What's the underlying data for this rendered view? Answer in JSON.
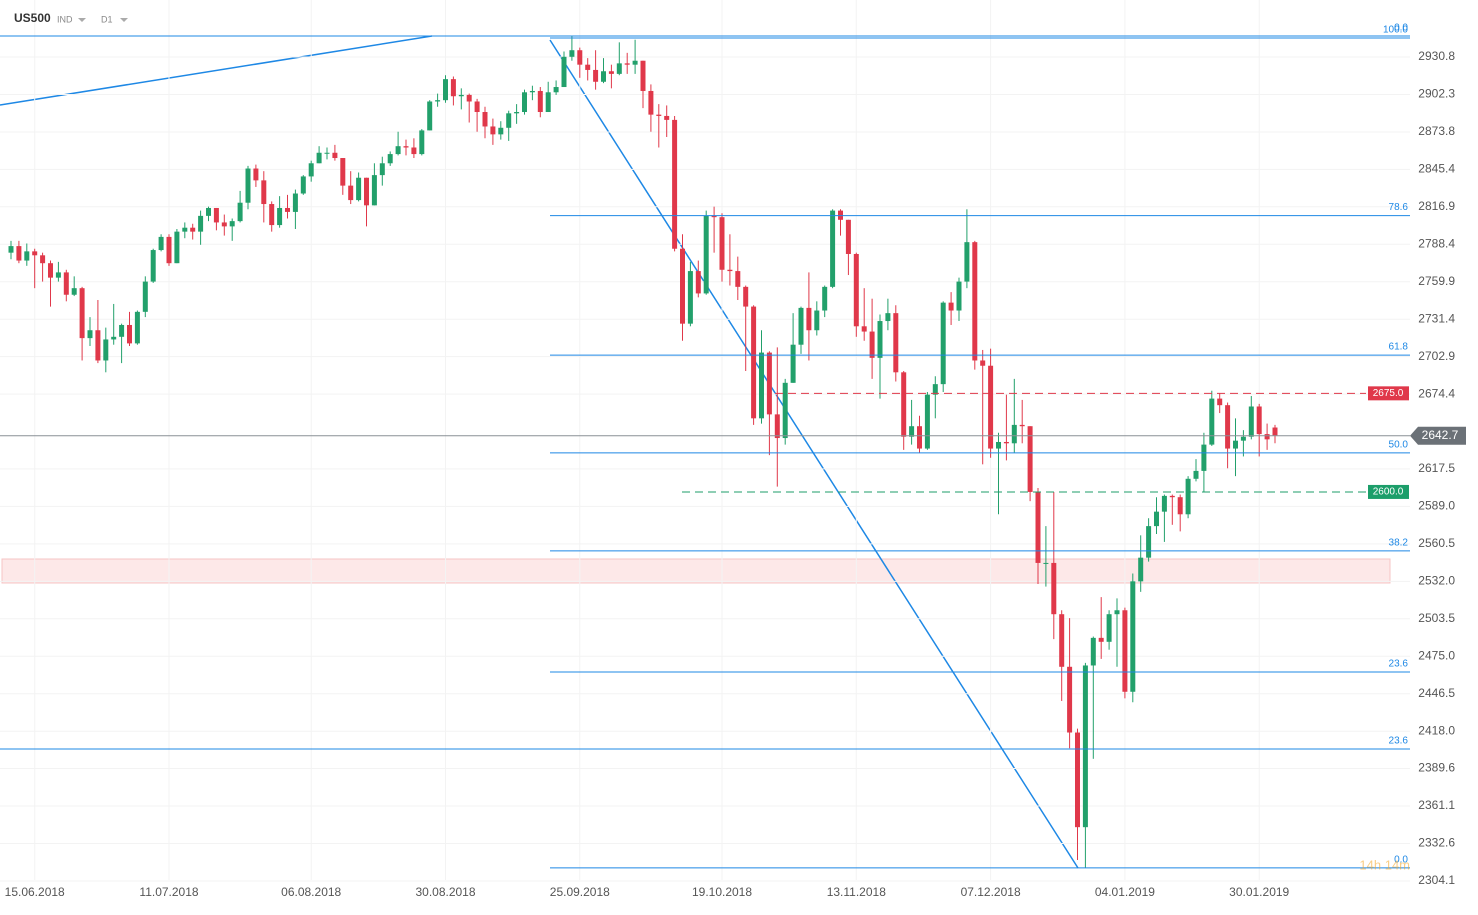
{
  "header": {
    "symbol": "US500",
    "market": "IND",
    "timeframe": "D1"
  },
  "chart_data": {
    "type": "candlestick",
    "grid": true,
    "ylim": [
      2285.8,
      2974.2
    ],
    "yticks": [
      2930.8,
      2902.3,
      2873.8,
      2845.4,
      2816.9,
      2788.4,
      2759.9,
      2731.4,
      2702.9,
      2674.4,
      2617.5,
      {
        "value": 2589,
        "label": "2589.0"
      },
      2560.5,
      {
        "value": 2532,
        "label": "2532.0"
      },
      2503.5,
      {
        "value": 2475,
        "label": "2475.0"
      },
      2446.5,
      {
        "value": 2418,
        "label": "2418.0"
      },
      2389.6,
      2361.1,
      2332.6,
      2304.1
    ],
    "colors": {
      "up": "#22a06b",
      "down": "#e0384a"
    },
    "categories": [
      null,
      null,
      null,
      "15.06.2018",
      null,
      null,
      null,
      null,
      null,
      null,
      null,
      null,
      null,
      null,
      null,
      null,
      null,
      null,
      null,
      null,
      "11.07.2018",
      null,
      null,
      null,
      null,
      null,
      null,
      null,
      null,
      null,
      null,
      null,
      null,
      null,
      null,
      null,
      null,
      null,
      "06.08.2018",
      null,
      null,
      null,
      null,
      null,
      null,
      null,
      null,
      null,
      null,
      null,
      null,
      null,
      null,
      null,
      null,
      "30.08.2018",
      null,
      null,
      null,
      null,
      null,
      null,
      null,
      null,
      null,
      null,
      null,
      null,
      null,
      null,
      null,
      null,
      "25.09.2018",
      null,
      null,
      null,
      null,
      null,
      null,
      null,
      null,
      null,
      null,
      null,
      null,
      null,
      null,
      null,
      null,
      null,
      "19.10.2018",
      null,
      null,
      null,
      null,
      null,
      null,
      null,
      null,
      null,
      null,
      null,
      null,
      null,
      null,
      null,
      null,
      "13.11.2018",
      null,
      null,
      null,
      null,
      null,
      null,
      null,
      null,
      null,
      null,
      null,
      null,
      null,
      null,
      null,
      null,
      "07.12.2018",
      null,
      null,
      null,
      null,
      null,
      null,
      null,
      null,
      null,
      null,
      null,
      null,
      null,
      null,
      null,
      null,
      "04.01.2019",
      null,
      null,
      null,
      null,
      null,
      null,
      null,
      null,
      null,
      null,
      null,
      null,
      null,
      null,
      null,
      null,
      "30.01.2019"
    ],
    "candles": [
      [
        2782,
        2791,
        2777,
        2787
      ],
      [
        2787,
        2791,
        2774,
        2776
      ],
      [
        2776,
        2789,
        2772,
        2783
      ],
      [
        2783,
        2785,
        2755,
        2780
      ],
      [
        2780,
        2782,
        2760,
        2774
      ],
      [
        2774,
        2776,
        2741,
        2763
      ],
      [
        2763,
        2775,
        2760,
        2767
      ],
      [
        2767,
        2769,
        2745,
        2750
      ],
      [
        2750,
        2764,
        2749,
        2755
      ],
      [
        2755,
        2756,
        2700,
        2717
      ],
      [
        2717,
        2733,
        2711,
        2723
      ],
      [
        2723,
        2746,
        2698,
        2700
      ],
      [
        2700,
        2725,
        2691,
        2716
      ],
      [
        2716,
        2743,
        2712,
        2718
      ],
      [
        2718,
        2728,
        2698,
        2727
      ],
      [
        2727,
        2737,
        2711,
        2713
      ],
      [
        2713,
        2738,
        2712,
        2737
      ],
      [
        2737,
        2764,
        2733,
        2760
      ],
      [
        2760,
        2785,
        2759,
        2784
      ],
      [
        2784,
        2796,
        2783,
        2794
      ],
      [
        2794,
        2796,
        2772,
        2774
      ],
      [
        2774,
        2800,
        2774,
        2798
      ],
      [
        2798,
        2805,
        2793,
        2801
      ],
      [
        2801,
        2804,
        2792,
        2798
      ],
      [
        2798,
        2814,
        2788,
        2810
      ],
      [
        2810,
        2817,
        2806,
        2816
      ],
      [
        2816,
        2816,
        2799,
        2805
      ],
      [
        2805,
        2811,
        2795,
        2802
      ],
      [
        2802,
        2808,
        2791,
        2806
      ],
      [
        2806,
        2829,
        2805,
        2820
      ],
      [
        2820,
        2848,
        2815,
        2846
      ],
      [
        2846,
        2849,
        2832,
        2837
      ],
      [
        2837,
        2844,
        2805,
        2819
      ],
      [
        2819,
        2821,
        2798,
        2803
      ],
      [
        2803,
        2825,
        2801,
        2816
      ],
      [
        2816,
        2826,
        2808,
        2813
      ],
      [
        2813,
        2830,
        2800,
        2827
      ],
      [
        2827,
        2841,
        2826,
        2840
      ],
      [
        2840,
        2852,
        2836,
        2850
      ],
      [
        2850,
        2863,
        2850,
        2858
      ],
      [
        2858,
        2862,
        2853,
        2858
      ],
      [
        2858,
        2864,
        2852,
        2854
      ],
      [
        2854,
        2854,
        2826,
        2833
      ],
      [
        2833,
        2844,
        2819,
        2822
      ],
      [
        2822,
        2843,
        2821,
        2839
      ],
      [
        2839,
        2839,
        2802,
        2818
      ],
      [
        2818,
        2850,
        2818,
        2841
      ],
      [
        2841,
        2855,
        2833,
        2850
      ],
      [
        2850,
        2859,
        2848,
        2857
      ],
      [
        2857,
        2874,
        2856,
        2863
      ],
      [
        2863,
        2868,
        2856,
        2862
      ],
      [
        2862,
        2869,
        2854,
        2857
      ],
      [
        2857,
        2876,
        2856,
        2875
      ],
      [
        2875,
        2898,
        2875,
        2897
      ],
      [
        2897,
        2903,
        2893,
        2898
      ],
      [
        2898,
        2917,
        2896,
        2914
      ],
      [
        2914,
        2916,
        2894,
        2901
      ],
      [
        2901,
        2907,
        2891,
        2902
      ],
      [
        2902,
        2903,
        2881,
        2897
      ],
      [
        2897,
        2899,
        2874,
        2889
      ],
      [
        2889,
        2893,
        2869,
        2878
      ],
      [
        2878,
        2884,
        2864,
        2872
      ],
      [
        2872,
        2882,
        2868,
        2877
      ],
      [
        2877,
        2890,
        2867,
        2888
      ],
      [
        2888,
        2895,
        2880,
        2889
      ],
      [
        2889,
        2906,
        2887,
        2904
      ],
      [
        2904,
        2909,
        2898,
        2905
      ],
      [
        2905,
        2908,
        2885,
        2889
      ],
      [
        2889,
        2912,
        2889,
        2904
      ],
      [
        2904,
        2913,
        2902,
        2908
      ],
      [
        2908,
        2935,
        2908,
        2931
      ],
      [
        2931,
        2947,
        2928,
        2936
      ],
      [
        2936,
        2938,
        2915,
        2925
      ],
      [
        2925,
        2930,
        2913,
        2921
      ],
      [
        2921,
        2936,
        2906,
        2912
      ],
      [
        2912,
        2930,
        2911,
        2920
      ],
      [
        2920,
        2925,
        2907,
        2918
      ],
      [
        2918,
        2942,
        2917,
        2926
      ],
      [
        2926,
        2934,
        2918,
        2925
      ],
      [
        2925,
        2944,
        2918,
        2928
      ],
      [
        2928,
        2928,
        2892,
        2905
      ],
      [
        2905,
        2910,
        2874,
        2887
      ],
      [
        2887,
        2895,
        2862,
        2886
      ],
      [
        2886,
        2894,
        2870,
        2883
      ],
      [
        2883,
        2886,
        2783,
        2785
      ],
      [
        2785,
        2796,
        2715,
        2728
      ],
      [
        2728,
        2775,
        2726,
        2768
      ],
      [
        2768,
        2776,
        2748,
        2751
      ],
      [
        2751,
        2814,
        2750,
        2810
      ],
      [
        2810,
        2817,
        2782,
        2809
      ],
      [
        2809,
        2812,
        2760,
        2769
      ],
      [
        2769,
        2796,
        2757,
        2768
      ],
      [
        2768,
        2779,
        2746,
        2756
      ],
      [
        2756,
        2757,
        2692,
        2741
      ],
      [
        2741,
        2742,
        2651,
        2656
      ],
      [
        2656,
        2723,
        2652,
        2706
      ],
      [
        2706,
        2707,
        2628,
        2659
      ],
      [
        2659,
        2710,
        2604,
        2641
      ],
      [
        2641,
        2686,
        2636,
        2683
      ],
      [
        2683,
        2736,
        2683,
        2712
      ],
      [
        2712,
        2741,
        2705,
        2740
      ],
      [
        2740,
        2767,
        2700,
        2723
      ],
      [
        2723,
        2745,
        2719,
        2738
      ],
      [
        2738,
        2757,
        2733,
        2756
      ],
      [
        2756,
        2815,
        2755,
        2814
      ],
      [
        2814,
        2815,
        2795,
        2807
      ],
      [
        2807,
        2807,
        2765,
        2781
      ],
      [
        2781,
        2782,
        2718,
        2726
      ],
      [
        2726,
        2755,
        2715,
        2722
      ],
      [
        2722,
        2747,
        2686,
        2702
      ],
      [
        2702,
        2735,
        2671,
        2730
      ],
      [
        2730,
        2747,
        2723,
        2736
      ],
      [
        2736,
        2742,
        2684,
        2691
      ],
      [
        2691,
        2692,
        2632,
        2642
      ],
      [
        2642,
        2670,
        2636,
        2650
      ],
      [
        2650,
        2658,
        2630,
        2633
      ],
      [
        2633,
        2676,
        2632,
        2674
      ],
      [
        2674,
        2688,
        2656,
        2682
      ],
      [
        2682,
        2745,
        2676,
        2744
      ],
      [
        2744,
        2752,
        2727,
        2738
      ],
      [
        2738,
        2763,
        2730,
        2760
      ],
      [
        2760,
        2815,
        2755,
        2790
      ],
      [
        2790,
        2791,
        2693,
        2700
      ],
      [
        2700,
        2708,
        2621,
        2696
      ],
      [
        2696,
        2709,
        2626,
        2633
      ],
      [
        2633,
        2645,
        2583,
        2638
      ],
      [
        2638,
        2674,
        2624,
        2637
      ],
      [
        2637,
        2686,
        2630,
        2651
      ],
      [
        2651,
        2670,
        2637,
        2650
      ],
      [
        2650,
        2650,
        2593,
        2600
      ],
      [
        2600,
        2603,
        2530,
        2546
      ],
      [
        2546,
        2574,
        2528,
        2546
      ],
      [
        2546,
        2600,
        2488,
        2507
      ],
      [
        2507,
        2510,
        2441,
        2467
      ],
      [
        2467,
        2504,
        2405,
        2417
      ],
      [
        2417,
        2420,
        2320,
        2345
      ],
      [
        2345,
        2470,
        2314,
        2468
      ],
      [
        2468,
        2490,
        2397,
        2489
      ],
      [
        2489,
        2520,
        2473,
        2486
      ],
      [
        2486,
        2510,
        2480,
        2507
      ],
      [
        2507,
        2519,
        2467,
        2510
      ],
      [
        2510,
        2512,
        2443,
        2448
      ],
      [
        2448,
        2538,
        2440,
        2532
      ],
      [
        2532,
        2567,
        2524,
        2550
      ],
      [
        2550,
        2580,
        2547,
        2574
      ],
      [
        2574,
        2596,
        2568,
        2585
      ],
      [
        2585,
        2598,
        2562,
        2597
      ],
      [
        2597,
        2598,
        2575,
        2596
      ],
      [
        2596,
        2598,
        2570,
        2583
      ],
      [
        2583,
        2612,
        2580,
        2610
      ],
      [
        2610,
        2625,
        2608,
        2616
      ],
      [
        2616,
        2645,
        2600,
        2636
      ],
      [
        2636,
        2677,
        2635,
        2671
      ],
      [
        2671,
        2675,
        2660,
        2666
      ],
      [
        2666,
        2668,
        2618,
        2633
      ],
      [
        2633,
        2656,
        2612,
        2639
      ],
      [
        2639,
        2647,
        2627,
        2642
      ],
      [
        2642,
        2673,
        2640,
        2665
      ],
      [
        2665,
        2667,
        2627,
        2644
      ],
      [
        2644,
        2652,
        2632,
        2640
      ],
      [
        2649,
        2651,
        2637,
        2643
      ]
    ],
    "fibonacci": [
      {
        "label": "100.0",
        "price": 2945.3
      },
      {
        "label": "78.6",
        "price": 2810.2
      },
      {
        "label": "61.8",
        "price": 2704.1
      },
      {
        "label": "50.0",
        "price": 2629.7
      },
      {
        "label": "38.2",
        "price": 2555.2
      },
      {
        "label": "23.6",
        "price": 2463.0
      },
      {
        "label": "0.0",
        "price": 2314.0
      }
    ],
    "fibonacci_outer": [
      {
        "label": "0.0",
        "price": 2946.8
      },
      {
        "label": "23.6",
        "price": 2404.5
      }
    ],
    "levels": [
      {
        "label": "2675.0",
        "price": 2675,
        "color": "#e0384a"
      },
      {
        "label": "2600.0",
        "price": 2600,
        "color": "#1c9e6a"
      }
    ],
    "current_price": {
      "label": "2642.7",
      "price": 2642.7
    },
    "timer": "14h 14m"
  }
}
